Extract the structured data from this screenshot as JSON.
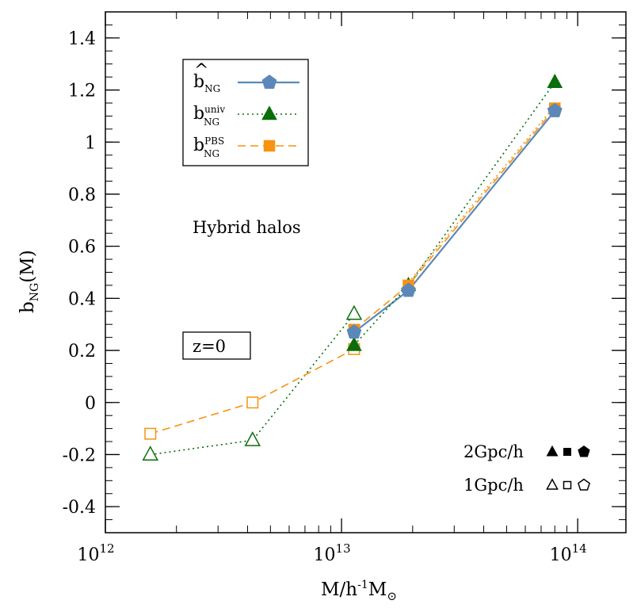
{
  "colors": {
    "blue": "#5b88b9",
    "green": "#0a6e0a",
    "orange": "#f7930f"
  },
  "chart_data": {
    "type": "line",
    "xscale": "log",
    "xlim": [
      1000000000000.0,
      160000000000000.0
    ],
    "ylim": [
      -0.5,
      1.5
    ],
    "x_ticks": [
      {
        "value": 1000000000000.0,
        "base": "10",
        "exp": "12"
      },
      {
        "value": 10000000000000.0,
        "base": "10",
        "exp": "13"
      },
      {
        "value": 100000000000000.0,
        "base": "10",
        "exp": "14"
      }
    ],
    "y_ticks": [
      {
        "value": -0.4,
        "label": "-0.4"
      },
      {
        "value": -0.2,
        "label": "-0.2"
      },
      {
        "value": 0,
        "label": "0"
      },
      {
        "value": 0.2,
        "label": "0.2"
      },
      {
        "value": 0.4,
        "label": "0.4"
      },
      {
        "value": 0.6,
        "label": "0.6"
      },
      {
        "value": 0.8,
        "label": "0.8"
      },
      {
        "value": 1.0,
        "label": "1"
      },
      {
        "value": 1.2,
        "label": "1.2"
      },
      {
        "value": 1.4,
        "label": "1.4"
      }
    ],
    "xlabel": {
      "main": "M/h",
      "sup": "-1",
      "main2": "M",
      "sub": "⊙"
    },
    "ylabel": {
      "main": "b",
      "sub": "NG",
      "tail": "(M)"
    },
    "annotations": {
      "halos": "Hybrid halos",
      "redshift": "z=0"
    },
    "legend": {
      "placement": "top-left",
      "entries": [
        {
          "base": "b",
          "hat": "^",
          "sup": "",
          "sub": "NG",
          "color": "blue",
          "marker": "pentagon",
          "line": "solid"
        },
        {
          "base": "b",
          "hat": "",
          "sup": "univ",
          "sub": "NG",
          "color": "green",
          "marker": "triangle",
          "line": "dotted"
        },
        {
          "base": "b",
          "hat": "",
          "sup": "PBS",
          "sub": "NG",
          "color": "orange",
          "marker": "square",
          "line": "dashed"
        }
      ]
    },
    "box_legend": {
      "rows": [
        {
          "label": "2Gpc/h",
          "filled": true
        },
        {
          "label": "1Gpc/h",
          "filled": false
        }
      ]
    },
    "series": [
      {
        "key": "b_hat",
        "color": "blue",
        "marker": "pentagon",
        "line": "solid",
        "filled": true,
        "points": [
          {
            "x": 11300000000000.0,
            "y": 0.27,
            "err": 0.02
          },
          {
            "x": 19200000000000.0,
            "y": 0.43,
            "err": 0.015
          },
          {
            "x": 80000000000000.0,
            "y": 1.12,
            "err": 0.02
          }
        ]
      },
      {
        "key": "univ_2gpc",
        "color": "green",
        "marker": "triangle",
        "line": "dotted",
        "filled": true,
        "points": [
          {
            "x": 11300000000000.0,
            "y": 0.22
          },
          {
            "x": 19200000000000.0,
            "y": 0.45
          },
          {
            "x": 80000000000000.0,
            "y": 1.23
          }
        ]
      },
      {
        "key": "univ_1gpc",
        "color": "green",
        "marker": "triangle",
        "line": "dotted",
        "filled": false,
        "points": [
          {
            "x": 1550000000000.0,
            "y": -0.2
          },
          {
            "x": 4200000000000.0,
            "y": -0.145
          },
          {
            "x": 11300000000000.0,
            "y": 0.34
          }
        ]
      },
      {
        "key": "pbs_2gpc",
        "color": "orange",
        "marker": "square",
        "line": "dashed",
        "filled": true,
        "points": [
          {
            "x": 11300000000000.0,
            "y": 0.28
          },
          {
            "x": 19200000000000.0,
            "y": 0.45
          },
          {
            "x": 80000000000000.0,
            "y": 1.13
          }
        ]
      },
      {
        "key": "pbs_1gpc",
        "color": "orange",
        "marker": "square",
        "line": "dashed",
        "filled": false,
        "points": [
          {
            "x": 1550000000000.0,
            "y": -0.12
          },
          {
            "x": 4200000000000.0,
            "y": 0.0
          },
          {
            "x": 11300000000000.0,
            "y": 0.205
          }
        ]
      },
      {
        "key": "univ_2gpc_dense",
        "color": "orange",
        "marker": "none",
        "line": "dotted",
        "filled": true,
        "points": [
          {
            "x": 19200000000000.0,
            "y": 0.46
          },
          {
            "x": 80000000000000.0,
            "y": 1.14
          }
        ]
      }
    ]
  }
}
